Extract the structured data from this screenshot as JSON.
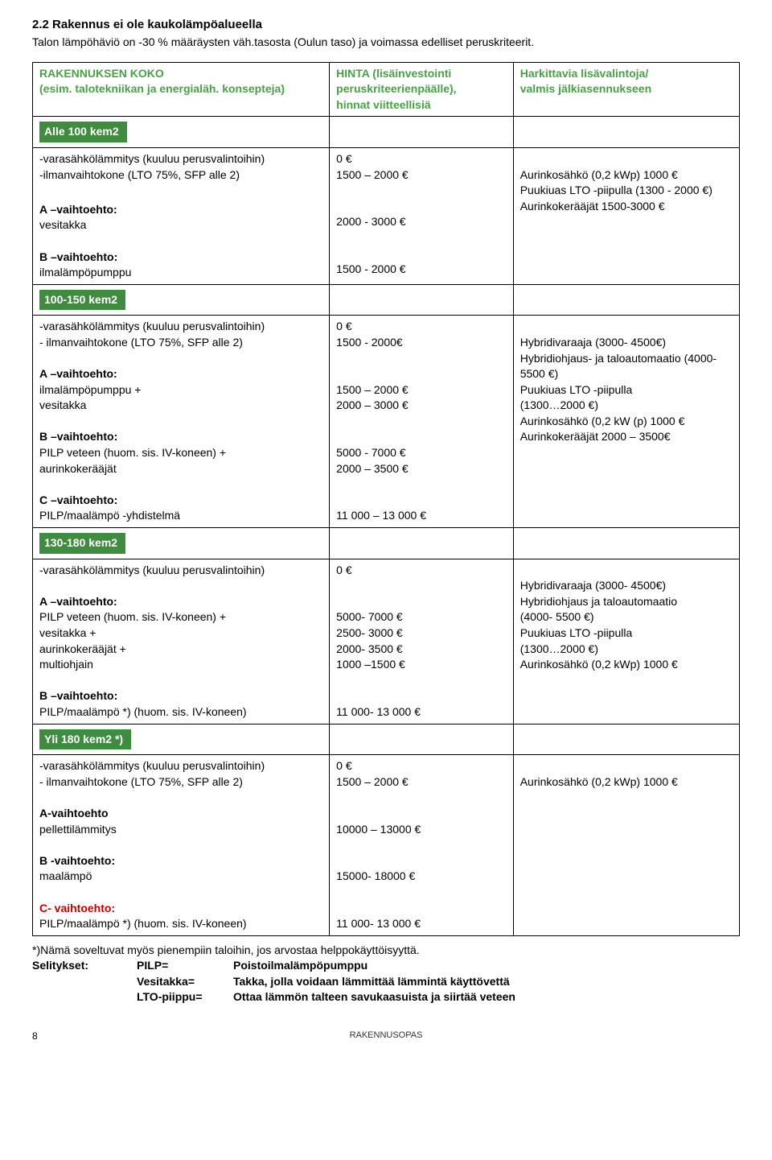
{
  "section": {
    "title": "2.2 Rakennus ei ole kaukolämpöalueella",
    "subtitle": "Talon lämpöhäviö on -30 % määräysten väh.tasosta (Oulun taso) ja voimassa edelliset peruskriteerit."
  },
  "colors": {
    "accent_green_text": "#4aa046",
    "green_box_bg": "#3f8b3f",
    "green_box_text": "#ffffff",
    "border": "#000000",
    "bg": "#ffffff"
  },
  "header": {
    "col1_l1": "RAKENNUKSEN KOKO",
    "col1_l2": "(esim. talotekniikan ja energialäh. konsepteja)",
    "col2_l1": "HINTA (lisäinvestointi",
    "col2_l2": "peruskriteerienpäälle),",
    "col2_l3": "hinnat viitteellisiä",
    "col3_l1": "Harkittavia lisävalintoja/",
    "col3_l2": "valmis jälkiasennukseen"
  },
  "block_a": {
    "title": "Alle 100 kem2",
    "r1": "-varasähkölämmitys (kuuluu perusvalintoihin)",
    "r2": "-ilmanvaihtokone (LTO 75%, SFP alle 2)",
    "a_label": "A –vaihtoehto:",
    "a_text": " vesitakka",
    "b_label": "B –vaihtoehto:",
    "b_text": " ilmalämpöpumppu",
    "p0": "0 €",
    "p1": "1500 – 2000 €",
    "p2": "2000 - 3000 €",
    "p3": "1500 - 2000 €",
    "c1": "Aurinkosähkö (0,2 kWp) 1000 €",
    "c2": "Puukiuas LTO -piipulla (1300 - 2000 €)",
    "c3": "Aurinkokerääjät  1500-3000 €"
  },
  "block_b": {
    "title": "100-150 kem2",
    "r1": "-varasähkölämmitys (kuuluu perusvalintoihin)",
    "r2": "- ilmanvaihtokone (LTO 75%, SFP alle 2)",
    "a_label": " A –vaihtoehto:",
    "a_text1": "ilmalämpöpumppu +",
    "a_text2": "vesitakka",
    "b_label": "B –vaihtoehto:",
    "b_text1": "PILP veteen (huom. sis. IV-koneen) +",
    "b_text2": "aurinkokerääjät",
    "c_label": "C –vaihtoehto:",
    "c_text": "PILP/maalämpö -yhdistelmä",
    "p0": "0 €",
    "p1": "1500 - 2000€",
    "p2": "1500 – 2000 €",
    "p3": "2000 – 3000 €",
    "p4": "5000  - 7000 €",
    "p5": "2000 – 3500 €",
    "p6": "11 000 – 13 000 €",
    "c1": "Hybridivaraaja  (3000- 4500€)",
    "c2": "Hybridiohjaus- ja taloautomaatio (4000- 5500 €)",
    "c3": "Puukiuas LTO -piipulla",
    "c4": "(1300…2000 €)",
    "c5": "Aurinkosähkö (0,2 kW (p) 1000 €",
    "c6": "Aurinkokerääjät 2000 – 3500€"
  },
  "block_c": {
    "title": "130-180 kem2",
    "r1": "-varasähkölämmitys (kuuluu perusvalintoihin)",
    "a_label": "A –vaihtoehto:",
    "a_text1": "PILP veteen (huom. sis. IV-koneen) +",
    "a_text2": "vesitakka +",
    "a_text3": "aurinkokerääjät +",
    "a_text4": "multiohjain",
    "b_label": "B –vaihtoehto:",
    "b_text": "PILP/maalämpö *) (huom. sis. IV-koneen)",
    "p0": "0 €",
    "p1": "5000- 7000 €",
    "p2": "2500- 3000 €",
    "p3": "2000- 3500 €",
    "p4": "1000 –1500 €",
    "p5": "11 000- 13 000 €",
    "c1": "Hybridivaraaja (3000- 4500€)",
    "c2": "Hybridiohjaus ja taloautomaatio",
    "c3": "(4000- 5500 €)",
    "c4": "Puukiuas LTO -piipulla",
    "c5": "(1300…2000 €)",
    "c6": "Aurinkosähkö (0,2 kWp) 1000 €"
  },
  "block_d": {
    "title": "Yli 180 kem2 *)",
    "r1": "-varasähkölämmitys (kuuluu perusvalintoihin)",
    "r2": "- ilmanvaihtokone (LTO 75%, SFP alle 2)",
    "a_label": "A-vaihtoehto",
    "a_text": "pellettilämmitys",
    "b_label": "B -vaihtoehto:",
    "b_text": "maalämpö",
    "c_label": "C- vaihtoehto:",
    "c_text": "PILP/maalämpö *) (huom. sis. IV-koneen)",
    "p0": "0 €",
    "p1": "1500 – 2000 €",
    "p2": "10000 – 13000 €",
    "p3": "15000- 18000 €",
    "p4": "11 000- 13 000 €",
    "c1": "Aurinkosähkö (0,2 kWp) 1000 €"
  },
  "foot": {
    "note": "*)Nämä soveltuvat myös pienempiin taloihin, jos arvostaa helppokäyttöisyyttä.",
    "def_label": "Selitykset:",
    "k1": "PILP=",
    "v1": "Poistoilmalämpöpumppu",
    "k2": "Vesitakka=",
    "v2": "Takka, jolla voidaan lämmittää lämmintä käyttövettä",
    "k3": "LTO-piippu=",
    "v3": "Ottaa lämmön talteen savukaasuista ja siirtää veteen"
  },
  "footer": {
    "page": "8",
    "label": "RAKENNUSOPAS"
  }
}
